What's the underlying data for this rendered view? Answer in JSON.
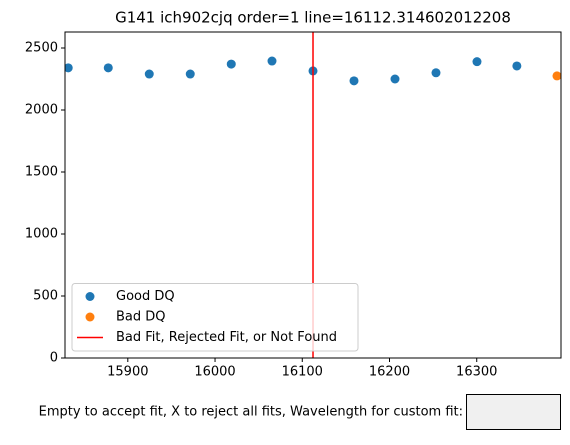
{
  "chart_data": {
    "type": "scatter",
    "title": "G141 ich902cjq order=1 line=16112.314602012208",
    "series": [
      {
        "name": "Good DQ",
        "color": "#1f77b4",
        "x": [
          15831.7,
          15877.6,
          15924.6,
          15971.6,
          16018.6,
          16065.3,
          16112.3,
          16159.3,
          16206.3,
          16253.3,
          16300.3,
          16346.0
        ],
        "values": [
          2340,
          2340,
          2290,
          2290,
          2370,
          2395,
          2315,
          2235,
          2250,
          2300,
          2390,
          2355
        ]
      },
      {
        "name": "Bad DQ",
        "color": "#ff7f0e",
        "x": [
          16392.0
        ],
        "values": [
          2275
        ]
      }
    ],
    "lines": [
      {
        "name": "Bad Fit, Rejected Fit, or Not Found",
        "x": 16112.314602012208,
        "color": "#ff0000"
      }
    ],
    "xlim": [
      15828,
      16396.6
    ],
    "ylim": [
      0,
      2629
    ],
    "xticks": [
      15900,
      16000,
      16100,
      16200,
      16300
    ],
    "yticks": [
      0,
      500,
      1000,
      1500,
      2000,
      2500
    ],
    "legend": "lower left"
  },
  "textbox": {
    "label": "Empty to accept fit, X to reject all fits, Wavelength for custom fit:"
  }
}
